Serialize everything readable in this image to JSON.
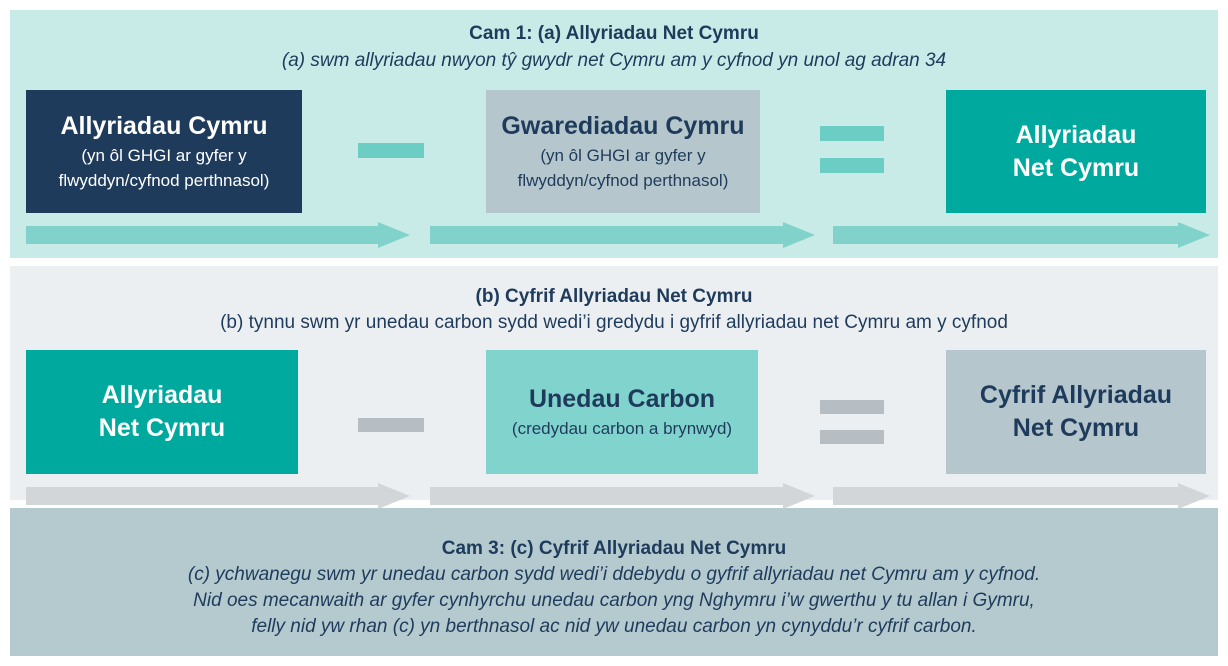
{
  "step1": {
    "title": "Cam 1: (a) Allyriadau Net Cymru",
    "subtitle": "(a) swm allyriadau nwyon tŷ gwydr net Cymru am y cyfnod yn unol ag adran 34",
    "box1": {
      "title": "Allyriadau Cymru",
      "note": [
        "(yn ôl GHGI ar gyfer y",
        "flwyddyn/cyfnod perthnasol)"
      ]
    },
    "box2": {
      "title": "Gwarediadau Cymru",
      "note": [
        "(yn ôl GHGI ar gyfer y",
        "flwyddyn/cyfnod perthnasol)"
      ]
    },
    "box3": {
      "title": [
        "Allyriadau",
        "Net Cymru"
      ]
    }
  },
  "step2": {
    "title": "(b) Cyfrif Allyriadau Net Cymru",
    "subtitle": "(b) tynnu swm yr unedau carbon sydd wedi’i gredydu i gyfrif allyriadau net Cymru am y cyfnod",
    "box1": {
      "title": [
        "Allyriadau",
        "Net Cymru"
      ]
    },
    "box2": {
      "title": "Unedau Carbon",
      "note": [
        "(credydau carbon a brynwyd)"
      ]
    },
    "box3": {
      "title": [
        "Cyfrif Allyriadau",
        "Net Cymru"
      ]
    }
  },
  "step3": {
    "title": "Cam 3: (c) Cyfrif Allyriadau Net Cymru",
    "lines": [
      "(c) ychwanegu swm yr unedau carbon sydd wedi’i ddebydu o gyfrif allyriadau net Cymru am y cyfnod.",
      "Nid oes mecanwaith ar gyfer cynhyrchu unedau carbon yng Nghymru i’w gwerthu y tu allan i Gymru,",
      "felly nid yw rhan (c) yn berthnasol ac nid yw unedau carbon yn cynyddu’r cyfrif carbon."
    ]
  }
}
